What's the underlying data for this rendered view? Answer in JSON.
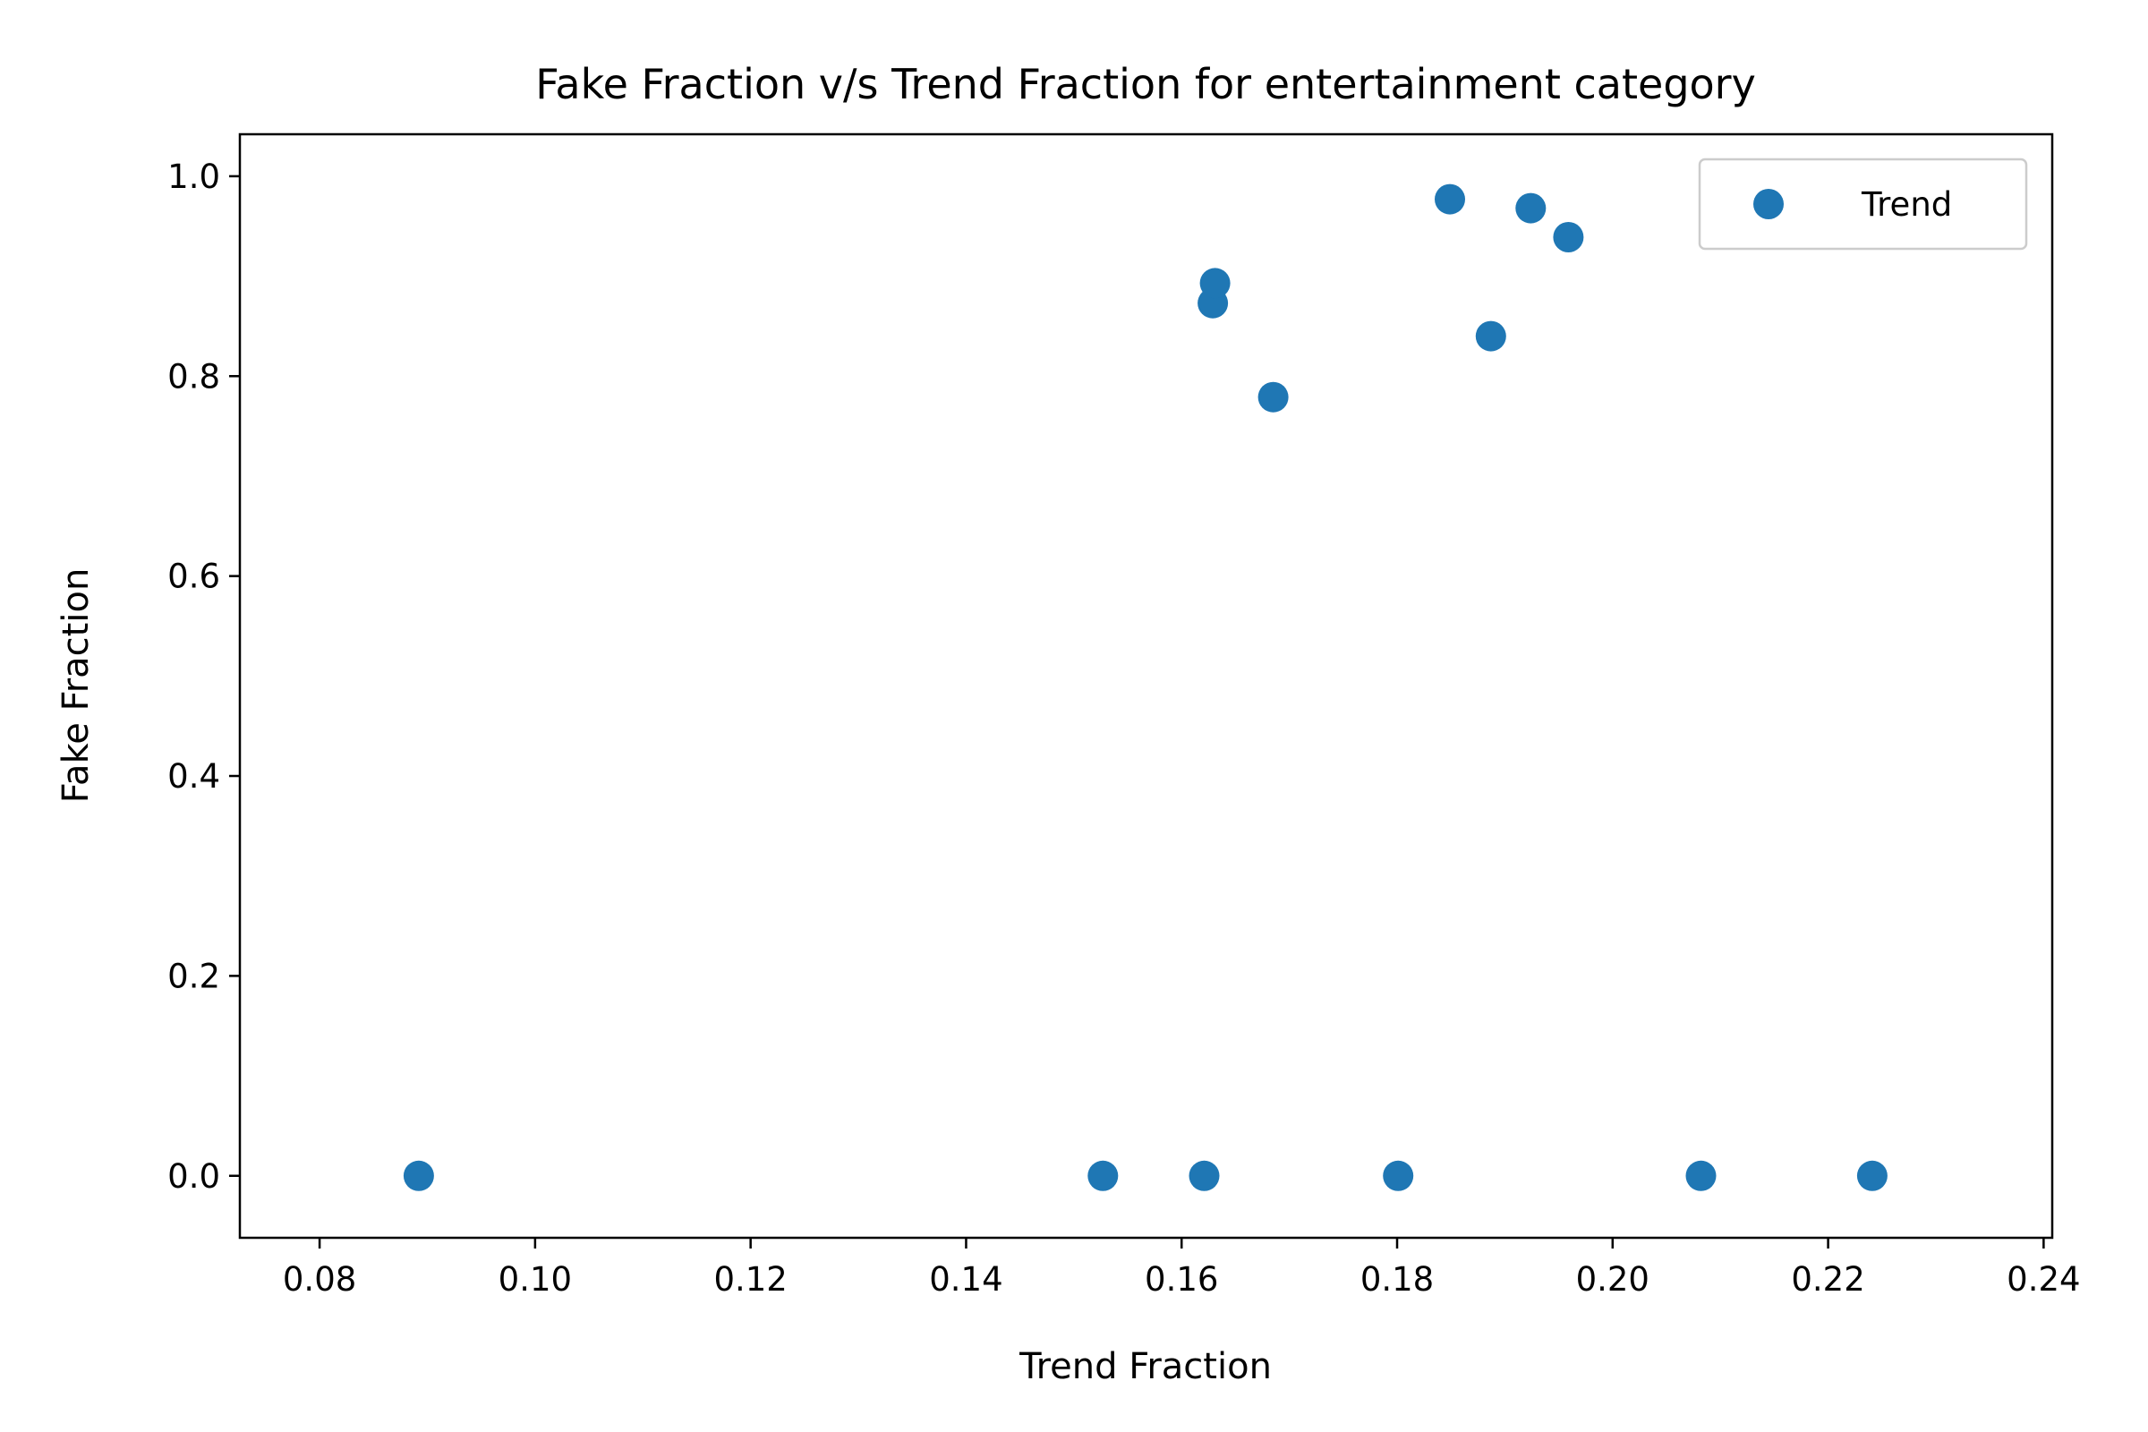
{
  "chart_data": {
    "type": "scatter",
    "title": "Fake Fraction v/s Trend Fraction for entertainment category",
    "xlabel": "Trend Fraction",
    "ylabel": "Fake Fraction",
    "xlim": [
      0.0726,
      0.2408
    ],
    "ylim": [
      -0.062,
      1.042
    ],
    "xticks": [
      0.08,
      0.1,
      0.12,
      0.14,
      0.16,
      0.18,
      0.2,
      0.22,
      0.24
    ],
    "xtick_labels": [
      "0.08",
      "0.10",
      "0.12",
      "0.14",
      "0.16",
      "0.18",
      "0.20",
      "0.22",
      "0.24"
    ],
    "yticks": [
      0.0,
      0.2,
      0.4,
      0.6,
      0.8,
      1.0
    ],
    "ytick_labels": [
      "0.0",
      "0.2",
      "0.4",
      "0.6",
      "0.8",
      "1.0"
    ],
    "grid": false,
    "legend_position": "top-right",
    "series": [
      {
        "name": "Trend",
        "color": "#1f77b4",
        "points": [
          {
            "x": 0.0892,
            "y": 0.0
          },
          {
            "x": 0.1527,
            "y": 0.0
          },
          {
            "x": 0.1621,
            "y": 0.0
          },
          {
            "x": 0.1801,
            "y": 0.0
          },
          {
            "x": 0.2082,
            "y": 0.0
          },
          {
            "x": 0.2241,
            "y": 0.0
          },
          {
            "x": 0.1629,
            "y": 0.873
          },
          {
            "x": 0.1631,
            "y": 0.893
          },
          {
            "x": 0.1685,
            "y": 0.779
          },
          {
            "x": 0.1849,
            "y": 0.977
          },
          {
            "x": 0.1887,
            "y": 0.84
          },
          {
            "x": 0.1924,
            "y": 0.968
          },
          {
            "x": 0.1959,
            "y": 0.939
          }
        ]
      }
    ]
  }
}
